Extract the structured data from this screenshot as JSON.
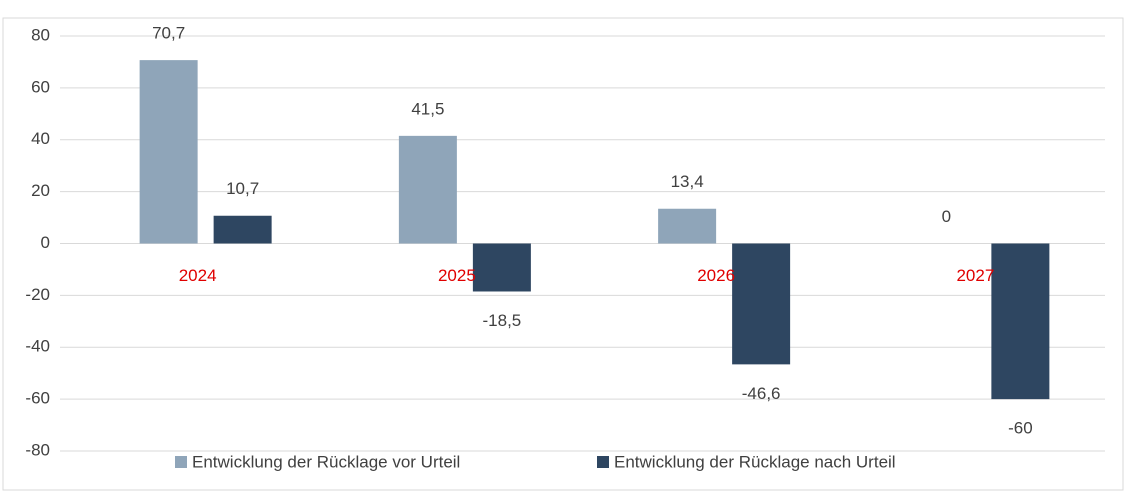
{
  "chart_data": {
    "type": "bar",
    "categories": [
      "2024",
      "2025",
      "2026",
      "2027"
    ],
    "series": [
      {
        "name": "Entwicklung der Rücklage vor Urteil",
        "color": "#8fa5b9",
        "values": [
          70.7,
          41.5,
          13.4,
          0
        ],
        "value_labels": [
          "70,7",
          "41,5",
          "13,4",
          "0"
        ]
      },
      {
        "name": "Entwicklung der Rücklage nach Urteil",
        "color": "#2e4661",
        "values": [
          10.7,
          -18.5,
          -46.6,
          -60
        ],
        "value_labels": [
          "10,7",
          "-18,5",
          "-46,6",
          "-60"
        ]
      }
    ],
    "category_color": "#e00000",
    "ylim": [
      -80,
      80
    ],
    "yticks": [
      -80,
      -60,
      -40,
      -20,
      0,
      20,
      40,
      60,
      80
    ],
    "grid": true,
    "legend": "bottom"
  }
}
